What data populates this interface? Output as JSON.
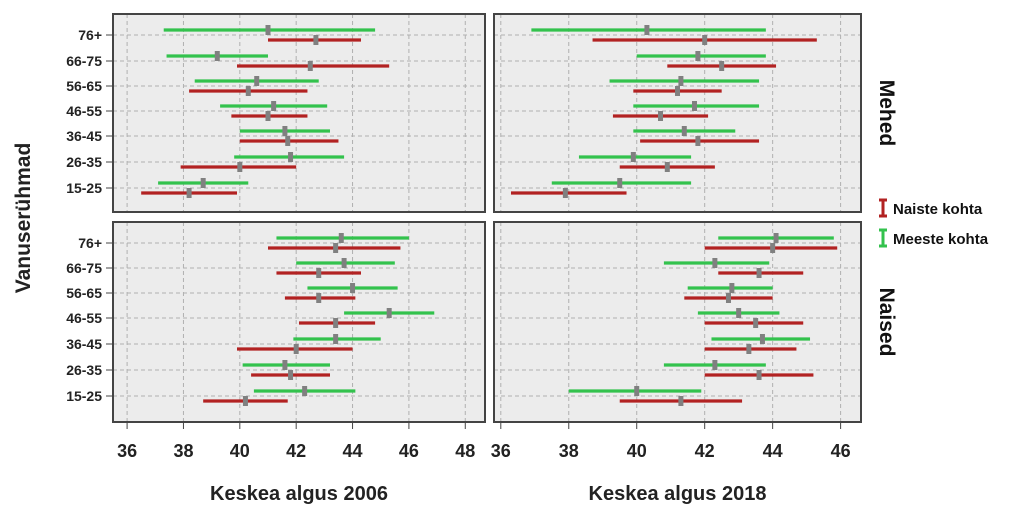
{
  "chart_data": {
    "type": "error-bar",
    "ylabel": "Vanuserühmad",
    "categories": [
      "76+",
      "66-75",
      "56-65",
      "46-55",
      "36-45",
      "26-35",
      "15-25"
    ],
    "columns": [
      {
        "id": "2006",
        "xlabel": "Keskea algus 2006",
        "xlim": [
          35.5,
          48.7
        ],
        "ticks": [
          36,
          38,
          40,
          42,
          44,
          46,
          48
        ]
      },
      {
        "id": "2018",
        "xlabel": "Keskea algus 2018",
        "xlim": [
          35.8,
          46.6
        ],
        "ticks": [
          36,
          38,
          40,
          42,
          44,
          46
        ]
      }
    ],
    "rows": [
      "Mehed",
      "Naised"
    ],
    "legend": [
      {
        "key": "women",
        "label": "Naiste kohta",
        "color": "#b22222"
      },
      {
        "key": "men",
        "label": "Meeste kohta",
        "color": "#33c24d"
      }
    ],
    "grid": true,
    "legend_position": "right",
    "panels": [
      {
        "column": "2006",
        "row": "Mehed",
        "men": [
          [
            37.3,
            41.0,
            44.8
          ],
          [
            37.4,
            39.2,
            41.0
          ],
          [
            38.4,
            40.6,
            42.8
          ],
          [
            39.3,
            41.2,
            43.1
          ],
          [
            40.0,
            41.6,
            43.2
          ],
          [
            39.8,
            41.8,
            43.7
          ],
          [
            37.1,
            38.7,
            40.3
          ]
        ],
        "women": [
          [
            41.0,
            42.7,
            44.3
          ],
          [
            39.9,
            42.5,
            45.3
          ],
          [
            38.2,
            40.3,
            42.4
          ],
          [
            39.7,
            41.0,
            42.4
          ],
          [
            40.0,
            41.7,
            43.5
          ],
          [
            37.9,
            40.0,
            42.0
          ],
          [
            36.5,
            38.2,
            39.9
          ]
        ]
      },
      {
        "column": "2018",
        "row": "Mehed",
        "men": [
          [
            36.9,
            40.3,
            43.8
          ],
          [
            40.0,
            41.8,
            43.8
          ],
          [
            39.2,
            41.3,
            43.6
          ],
          [
            39.9,
            41.7,
            43.6
          ],
          [
            39.9,
            41.4,
            42.9
          ],
          [
            38.3,
            39.9,
            41.6
          ],
          [
            37.5,
            39.5,
            41.6
          ]
        ],
        "women": [
          [
            38.7,
            42.0,
            45.3
          ],
          [
            40.9,
            42.5,
            44.1
          ],
          [
            39.9,
            41.2,
            42.5
          ],
          [
            39.3,
            40.7,
            42.1
          ],
          [
            40.1,
            41.8,
            43.6
          ],
          [
            39.5,
            40.9,
            42.3
          ],
          [
            36.3,
            37.9,
            39.7
          ]
        ]
      },
      {
        "column": "2006",
        "row": "Naised",
        "men": [
          [
            41.3,
            43.6,
            46.0
          ],
          [
            42.0,
            43.7,
            45.5
          ],
          [
            42.4,
            44.0,
            45.6
          ],
          [
            43.7,
            45.3,
            46.9
          ],
          [
            41.9,
            43.4,
            45.0
          ],
          [
            40.1,
            41.6,
            43.2
          ],
          [
            40.5,
            42.3,
            44.1
          ]
        ],
        "women": [
          [
            41.0,
            43.4,
            45.7
          ],
          [
            41.3,
            42.8,
            44.3
          ],
          [
            41.6,
            42.8,
            44.1
          ],
          [
            42.1,
            43.4,
            44.8
          ],
          [
            39.9,
            42.0,
            44.0
          ],
          [
            40.4,
            41.8,
            43.2
          ],
          [
            38.7,
            40.2,
            41.7
          ]
        ]
      },
      {
        "column": "2018",
        "row": "Naised",
        "men": [
          [
            42.4,
            44.1,
            45.8
          ],
          [
            40.8,
            42.3,
            43.9
          ],
          [
            41.5,
            42.8,
            44.0
          ],
          [
            41.8,
            43.0,
            44.2
          ],
          [
            42.2,
            43.7,
            45.1
          ],
          [
            40.8,
            42.3,
            43.8
          ],
          [
            38.0,
            40.0,
            41.9
          ]
        ],
        "women": [
          [
            42.0,
            44.0,
            45.9
          ],
          [
            42.4,
            43.6,
            44.9
          ],
          [
            41.4,
            42.7,
            44.0
          ],
          [
            42.0,
            43.5,
            44.9
          ],
          [
            42.0,
            43.3,
            44.7
          ],
          [
            42.0,
            43.6,
            45.2
          ],
          [
            39.5,
            41.3,
            43.1
          ]
        ]
      }
    ]
  }
}
